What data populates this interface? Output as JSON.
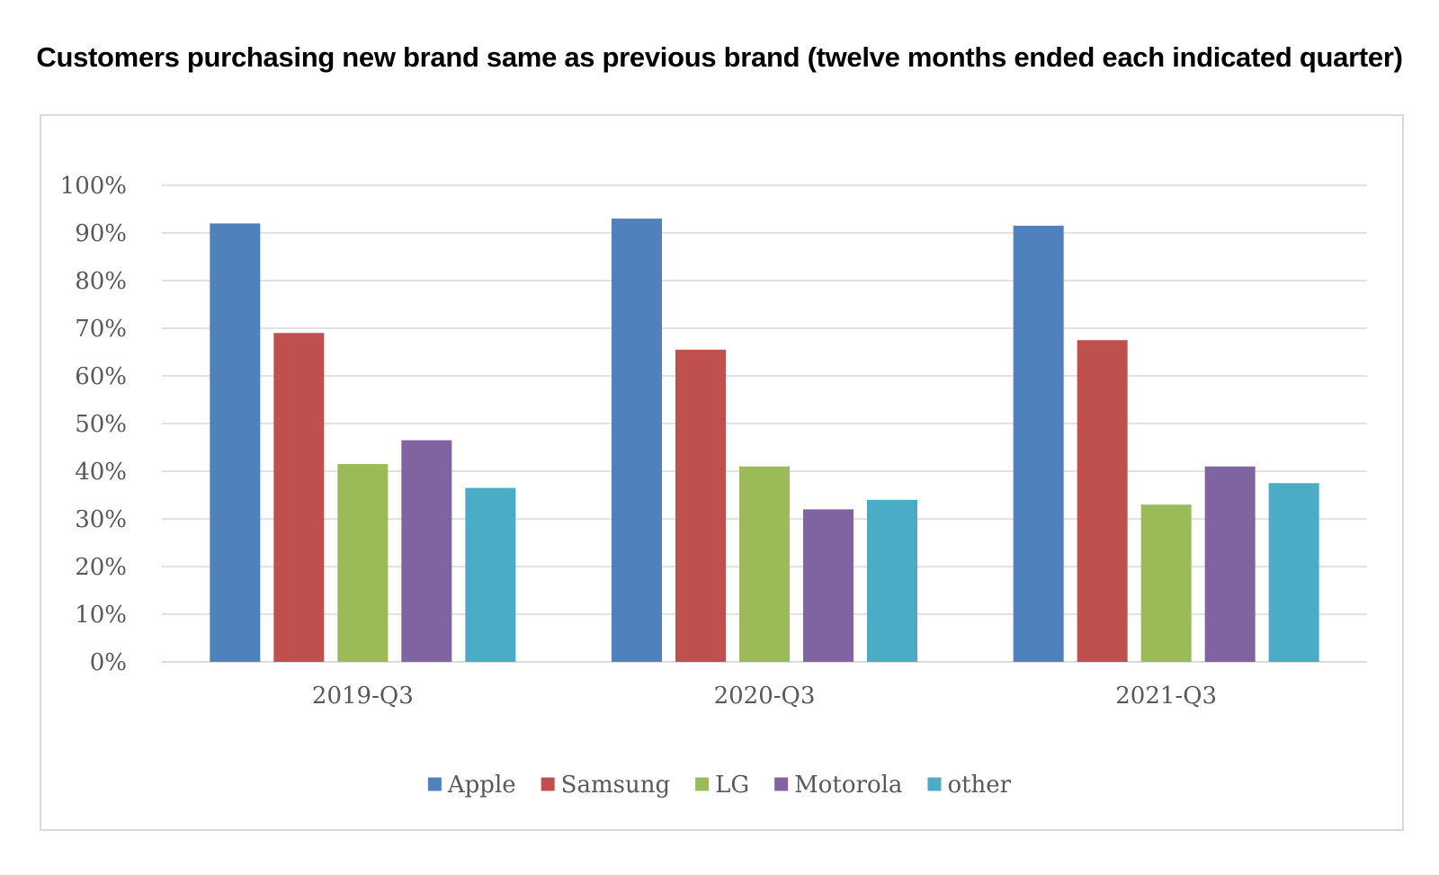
{
  "chart_data": {
    "type": "bar",
    "title": "Customers purchasing new brand same as previous brand (twelve months ended each indicated quarter)",
    "categories": [
      "2019-Q3",
      "2020-Q3",
      "2021-Q3"
    ],
    "series": [
      {
        "name": "Apple",
        "color": "#4f81bd",
        "values": [
          92,
          93,
          91.5
        ]
      },
      {
        "name": "Samsung",
        "color": "#c0504d",
        "values": [
          69,
          65.5,
          67.5
        ]
      },
      {
        "name": "LG",
        "color": "#9bbb59",
        "values": [
          41.5,
          41,
          33
        ]
      },
      {
        "name": "Motorola",
        "color": "#8064a2",
        "values": [
          46.5,
          32,
          41
        ]
      },
      {
        "name": "other",
        "color": "#4bacc6",
        "values": [
          36.5,
          34,
          37.5
        ]
      }
    ],
    "ylim": [
      0,
      100
    ],
    "yticks": [
      "0%",
      "10%",
      "20%",
      "30%",
      "40%",
      "50%",
      "60%",
      "70%",
      "80%",
      "90%",
      "100%"
    ],
    "xlabel": "",
    "ylabel": "",
    "grid": true,
    "legend_position": "bottom"
  }
}
